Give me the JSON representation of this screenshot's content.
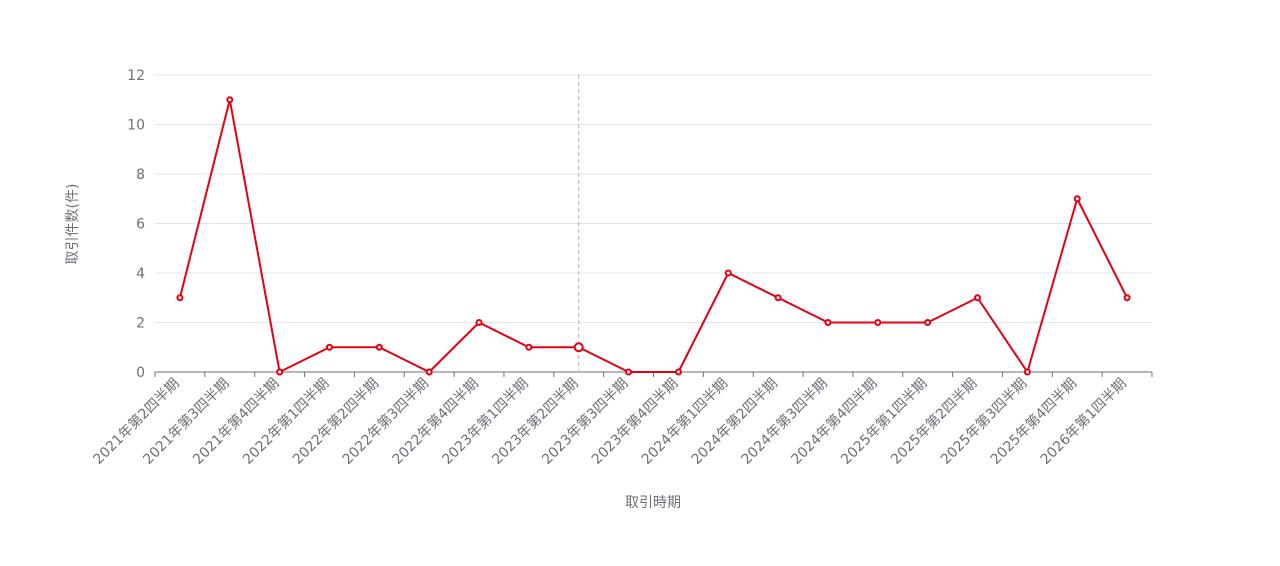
{
  "chart_data": {
    "type": "line",
    "xlabel": "取引時期",
    "ylabel": "取引件数(件)",
    "categories": [
      "2021年第2四半期",
      "2021年第3四半期",
      "2021年第4四半期",
      "2022年第1四半期",
      "2022年第2四半期",
      "2022年第3四半期",
      "2022年第4四半期",
      "2023年第1四半期",
      "2023年第2四半期",
      "2023年第3四半期",
      "2023年第4四半期",
      "2024年第1四半期",
      "2024年第2四半期",
      "2024年第3四半期",
      "2024年第4四半期",
      "2025年第1四半期",
      "2025年第2四半期",
      "2025年第3四半期",
      "2025年第4四半期",
      "2026年第1四半期"
    ],
    "values": [
      3,
      11,
      0,
      1,
      1,
      0,
      2,
      1,
      1,
      0,
      0,
      4,
      3,
      2,
      2,
      2,
      3,
      0,
      7,
      3
    ],
    "ylim": [
      0,
      12
    ],
    "yticks": [
      0,
      2,
      4,
      6,
      8,
      10,
      12
    ],
    "grid": true,
    "highlight_category": "2023年第2四半期",
    "series_color": "#e60012",
    "grid_color": "#e0e6f1",
    "axis_color": "#6e7079",
    "crosshair_color": "#b0b0b0"
  }
}
